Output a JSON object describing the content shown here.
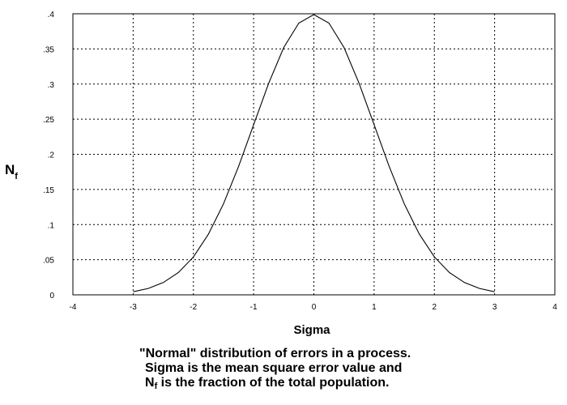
{
  "chart_data": {
    "type": "line",
    "title": "",
    "xlabel": "Sigma",
    "ylabel": {
      "main": "N",
      "sub": "f"
    },
    "xlim": [
      -4,
      4
    ],
    "ylim": [
      0,
      0.4
    ],
    "x_ticks": [
      -4,
      -3,
      -2,
      -1,
      0,
      1,
      2,
      3,
      4
    ],
    "x_tick_labels": [
      "-4",
      "-3",
      "-2",
      "-1",
      "0",
      "1",
      "2",
      "3",
      "4"
    ],
    "y_ticks": [
      0,
      0.05,
      0.1,
      0.15,
      0.2,
      0.25,
      0.3,
      0.35,
      0.4
    ],
    "y_tick_labels": [
      "0",
      ".05",
      ".1",
      ".15",
      ".2",
      ".25",
      ".3",
      ".35",
      ".4"
    ],
    "grid": true,
    "grid_style": "dotted",
    "line_color": "#000000",
    "series": [
      {
        "x": [
          -3.0,
          -2.75,
          -2.5,
          -2.25,
          -2.0,
          -1.75,
          -1.5,
          -1.25,
          -1.0,
          -0.75,
          -0.5,
          -0.25,
          0.0,
          0.25,
          0.5,
          0.75,
          1.0,
          1.25,
          1.5,
          1.75,
          2.0,
          2.25,
          2.5,
          2.75,
          3.0
        ],
        "values": [
          0.0044,
          0.0091,
          0.0175,
          0.0317,
          0.054,
          0.0863,
          0.1295,
          0.1826,
          0.242,
          0.3011,
          0.3521,
          0.3867,
          0.3989,
          0.3867,
          0.3521,
          0.3011,
          0.242,
          0.1826,
          0.1295,
          0.0863,
          0.054,
          0.0317,
          0.0175,
          0.0091,
          0.0044
        ]
      }
    ]
  },
  "caption": {
    "line1": "\"Normal\" distribution of errors in a process.",
    "line2": "Sigma is the mean square error value and",
    "line3_main": "N",
    "line3_sub": "f",
    "line3_rest": " is the fraction of the total population."
  }
}
